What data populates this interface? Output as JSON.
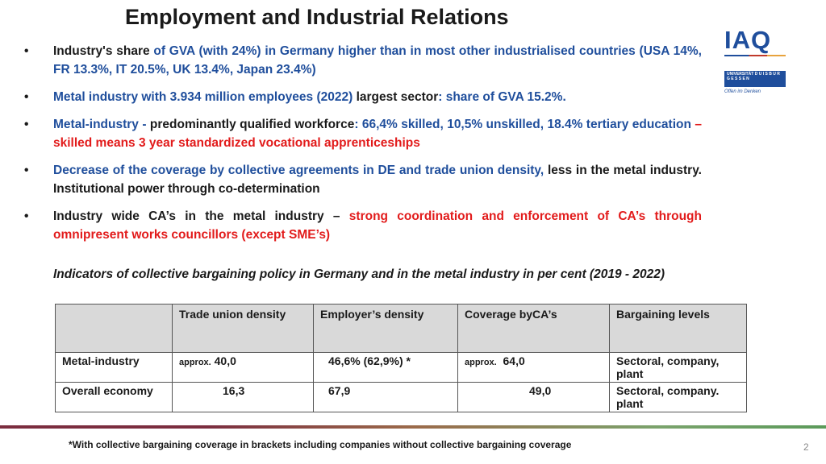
{
  "title": "Employment and Industrial Relations",
  "logo": {
    "iaq": "IAQ",
    "university": "UNIVERSITÄT D U I S B U R G E S S E N",
    "slogan": "Offen im Denken"
  },
  "bullets": [
    {
      "parts": [
        {
          "text": "Industry's share ",
          "color": "dark"
        },
        {
          "text": "of GVA (with 24%) in Germany higher than in most other industrialised countries (USA 14%, FR 13.3%, IT 20.5%, UK 13.4%, Japan 23.4%)",
          "color": "blue"
        }
      ]
    },
    {
      "parts": [
        {
          "text": "Metal industry with 3.934 million employees (2022) ",
          "color": "blue"
        },
        {
          "text": "largest sector",
          "color": "dark"
        },
        {
          "text": ": share of GVA 15.2%.",
          "color": "blue"
        }
      ]
    },
    {
      "parts": [
        {
          "text": "Metal-industry - ",
          "color": "blue"
        },
        {
          "text": "predominantly qualified workforce",
          "color": "dark"
        },
        {
          "text": ": 66,4% skilled, 10,5% unskilled, 18.4% tertiary education ",
          "color": "blue"
        },
        {
          "text": "– skilled means 3 year standardized vocational apprenticeships",
          "color": "red"
        }
      ]
    },
    {
      "parts": [
        {
          "text": "Decrease of the coverage by collective agreements in DE and trade union density, ",
          "color": "blue"
        },
        {
          "text": "less in the metal industry. Institutional power through co-determination",
          "color": "dark"
        }
      ]
    },
    {
      "parts": [
        {
          "text": "Industry wide CA’s in the metal industry – ",
          "color": "dark"
        },
        {
          "text": "strong coordination and enforcement of CA’s through omnipresent works councillors (except SME’s)",
          "color": "red"
        }
      ]
    }
  ],
  "caption": "Indicators of collective bargaining policy in Germany and in the metal industry in per cent (2019 - 2022)",
  "table": {
    "headers": [
      "",
      "Trade union density",
      "Employer’s density",
      "Coverage byCA’s",
      "Bargaining levels"
    ],
    "rows": [
      {
        "label": "Metal-industry",
        "tud_prefix": "approx.",
        "tud": "40,0",
        "emp": "46,6% (62,9%) *",
        "cov_prefix": "approx.",
        "cov": "64,0",
        "levels": "Sectoral, company, plant"
      },
      {
        "label": "Overall economy",
        "tud_prefix": "",
        "tud": "16,3",
        "emp": "67,9",
        "cov_prefix": "",
        "cov": "49,0",
        "levels": "Sectoral, company. plant"
      }
    ]
  },
  "footnote": "*With collective bargaining coverage in brackets including companies without collective bargaining coverage",
  "page_number": "2",
  "bullet_symbol": "•"
}
